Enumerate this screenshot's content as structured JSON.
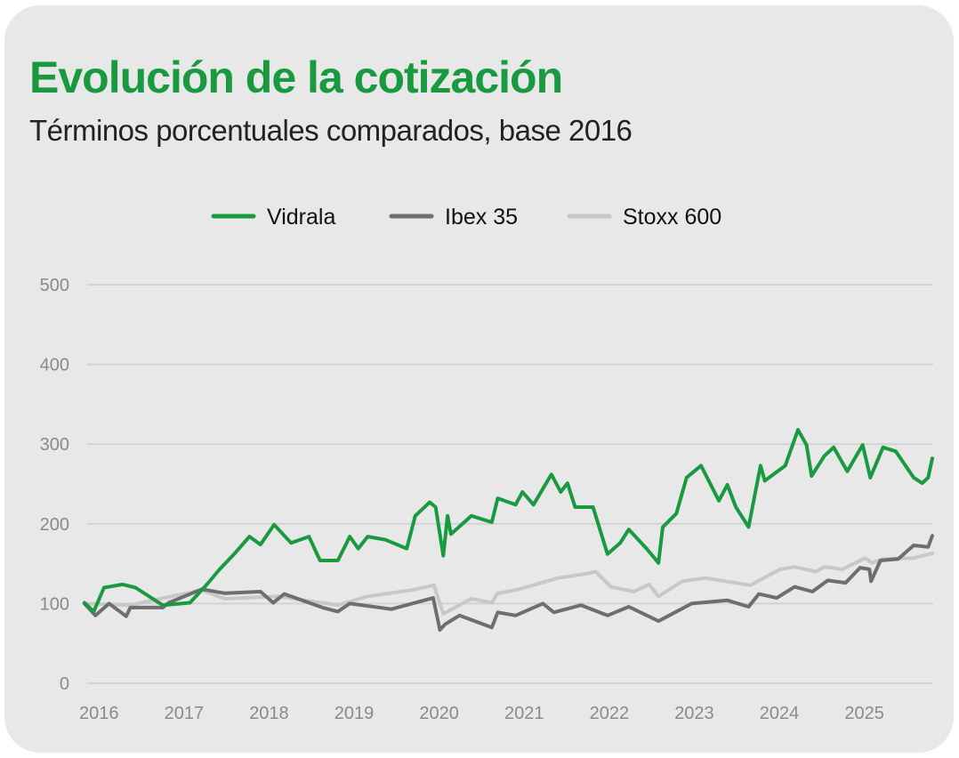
{
  "chart_data": {
    "type": "line",
    "title": "Evolución de la cotización",
    "subtitle": "Términos porcentuales comparados, base 2016",
    "xlim": [
      2016,
      2026
    ],
    "ylim": [
      0,
      500
    ],
    "yticks": [
      0,
      100,
      200,
      300,
      400,
      500
    ],
    "xticks": [
      2016,
      2017,
      2018,
      2019,
      2020,
      2021,
      2022,
      2023,
      2024,
      2025
    ],
    "grid": "horizontal",
    "legend_position": "top-center",
    "series": [
      {
        "name": "Vidrala",
        "color": "#1a9a40",
        "points": [
          [
            2016.02,
            101
          ],
          [
            2016.13,
            90
          ],
          [
            2016.25,
            120
          ],
          [
            2016.47,
            124
          ],
          [
            2016.62,
            120
          ],
          [
            2016.94,
            98
          ],
          [
            2017.26,
            101
          ],
          [
            2017.46,
            124
          ],
          [
            2017.61,
            143
          ],
          [
            2017.78,
            162
          ],
          [
            2017.96,
            184
          ],
          [
            2018.09,
            174
          ],
          [
            2018.25,
            199
          ],
          [
            2018.45,
            176
          ],
          [
            2018.66,
            184
          ],
          [
            2018.79,
            154
          ],
          [
            2019.0,
            154
          ],
          [
            2019.14,
            184
          ],
          [
            2019.24,
            169
          ],
          [
            2019.35,
            184
          ],
          [
            2019.56,
            180
          ],
          [
            2019.81,
            169
          ],
          [
            2019.91,
            210
          ],
          [
            2020.08,
            227
          ],
          [
            2020.15,
            221
          ],
          [
            2020.24,
            160
          ],
          [
            2020.29,
            210
          ],
          [
            2020.33,
            187
          ],
          [
            2020.57,
            210
          ],
          [
            2020.81,
            202
          ],
          [
            2020.88,
            232
          ],
          [
            2021.09,
            224
          ],
          [
            2021.17,
            240
          ],
          [
            2021.3,
            224
          ],
          [
            2021.51,
            262
          ],
          [
            2021.62,
            240
          ],
          [
            2021.7,
            251
          ],
          [
            2021.79,
            221
          ],
          [
            2022.0,
            221
          ],
          [
            2022.17,
            162
          ],
          [
            2022.32,
            176
          ],
          [
            2022.42,
            193
          ],
          [
            2022.63,
            169
          ],
          [
            2022.77,
            151
          ],
          [
            2022.82,
            196
          ],
          [
            2022.98,
            213
          ],
          [
            2023.1,
            258
          ],
          [
            2023.27,
            273
          ],
          [
            2023.48,
            229
          ],
          [
            2023.58,
            249
          ],
          [
            2023.68,
            221
          ],
          [
            2023.83,
            196
          ],
          [
            2023.97,
            273
          ],
          [
            2024.02,
            254
          ],
          [
            2024.26,
            273
          ],
          [
            2024.41,
            318
          ],
          [
            2024.51,
            299
          ],
          [
            2024.57,
            260
          ],
          [
            2024.72,
            285
          ],
          [
            2024.83,
            296
          ],
          [
            2024.99,
            266
          ],
          [
            2025.17,
            299
          ],
          [
            2025.26,
            258
          ],
          [
            2025.41,
            296
          ],
          [
            2025.56,
            291
          ],
          [
            2025.77,
            258
          ],
          [
            2025.87,
            251
          ],
          [
            2025.94,
            258
          ],
          [
            2025.99,
            282
          ]
        ]
      },
      {
        "name": "Ibex 35",
        "color": "#6e6e6e",
        "points": [
          [
            2016.02,
            100
          ],
          [
            2016.15,
            85
          ],
          [
            2016.31,
            100
          ],
          [
            2016.51,
            84
          ],
          [
            2016.56,
            95
          ],
          [
            2016.94,
            95
          ],
          [
            2017.01,
            101
          ],
          [
            2017.4,
            118
          ],
          [
            2017.67,
            113
          ],
          [
            2018.09,
            115
          ],
          [
            2018.24,
            101
          ],
          [
            2018.37,
            112
          ],
          [
            2018.82,
            95
          ],
          [
            2019.0,
            90
          ],
          [
            2019.14,
            100
          ],
          [
            2019.63,
            93
          ],
          [
            2020.12,
            107
          ],
          [
            2020.2,
            67
          ],
          [
            2020.26,
            74
          ],
          [
            2020.43,
            85
          ],
          [
            2020.81,
            70
          ],
          [
            2020.88,
            89
          ],
          [
            2021.09,
            85
          ],
          [
            2021.41,
            100
          ],
          [
            2021.54,
            89
          ],
          [
            2021.86,
            98
          ],
          [
            2022.17,
            85
          ],
          [
            2022.42,
            96
          ],
          [
            2022.77,
            78
          ],
          [
            2023.16,
            100
          ],
          [
            2023.58,
            104
          ],
          [
            2023.83,
            96
          ],
          [
            2023.95,
            112
          ],
          [
            2024.16,
            107
          ],
          [
            2024.37,
            121
          ],
          [
            2024.58,
            115
          ],
          [
            2024.76,
            129
          ],
          [
            2024.97,
            126
          ],
          [
            2025.14,
            145
          ],
          [
            2025.25,
            143
          ],
          [
            2025.27,
            128
          ],
          [
            2025.38,
            154
          ],
          [
            2025.59,
            156
          ],
          [
            2025.77,
            173
          ],
          [
            2025.94,
            171
          ],
          [
            2025.99,
            185
          ]
        ]
      },
      {
        "name": "Stoxx 600",
        "color": "#c8c8c8",
        "points": [
          [
            2016.02,
            100
          ],
          [
            2016.56,
            98
          ],
          [
            2017.4,
            117
          ],
          [
            2017.67,
            106
          ],
          [
            2018.3,
            109
          ],
          [
            2019.0,
            98
          ],
          [
            2019.35,
            109
          ],
          [
            2019.87,
            117
          ],
          [
            2020.13,
            123
          ],
          [
            2020.24,
            87
          ],
          [
            2020.57,
            106
          ],
          [
            2020.81,
            101
          ],
          [
            2020.88,
            113
          ],
          [
            2021.09,
            117
          ],
          [
            2021.23,
            121
          ],
          [
            2021.59,
            132
          ],
          [
            2021.9,
            137
          ],
          [
            2022.03,
            140
          ],
          [
            2022.21,
            121
          ],
          [
            2022.48,
            115
          ],
          [
            2022.66,
            124
          ],
          [
            2022.77,
            109
          ],
          [
            2023.05,
            128
          ],
          [
            2023.32,
            132
          ],
          [
            2023.85,
            123
          ],
          [
            2024.2,
            143
          ],
          [
            2024.37,
            146
          ],
          [
            2024.62,
            140
          ],
          [
            2024.72,
            146
          ],
          [
            2024.93,
            143
          ],
          [
            2025.2,
            157
          ],
          [
            2025.28,
            151
          ],
          [
            2025.41,
            156
          ],
          [
            2025.77,
            157
          ],
          [
            2025.99,
            163
          ]
        ]
      }
    ]
  }
}
